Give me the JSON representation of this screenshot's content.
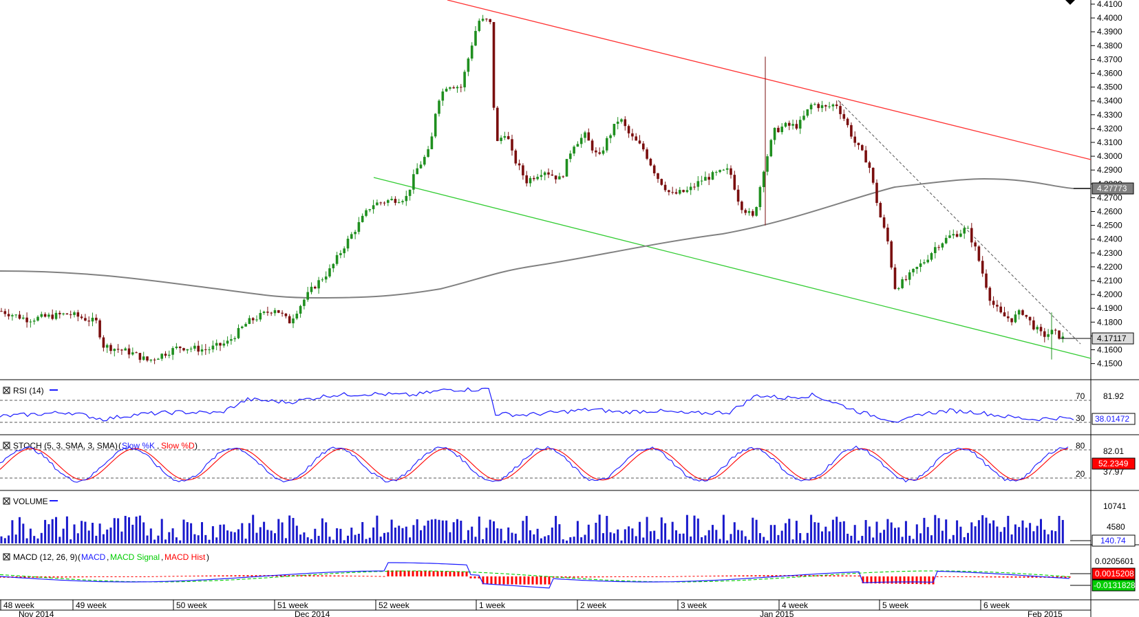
{
  "chart_data": {
    "type": "candlestick",
    "price_axis": {
      "ticks": [
        "4.4100",
        "4.4000",
        "4.3900",
        "4.3800",
        "4.3700",
        "4.3600",
        "4.3500",
        "4.3400",
        "4.3300",
        "4.3200",
        "4.3100",
        "4.3000",
        "4.2900",
        "4.2800",
        "4.2700",
        "4.2600",
        "4.2500",
        "4.2400",
        "4.2300",
        "4.2200",
        "4.2100",
        "4.2000",
        "4.1900",
        "4.1800",
        "4.1700",
        "4.1600",
        "4.1500"
      ],
      "ylim": [
        4.145,
        4.411
      ],
      "current_price": "4.17117",
      "ma_value": "4.27773"
    },
    "indicators": {
      "rsi": {
        "title": "RSI (14)",
        "levels": [
          "70",
          "30"
        ],
        "max_label": "81.92",
        "value": "38.01472"
      },
      "stoch": {
        "title": "STOCH (5, 3, SMA, 3, SMA)",
        "k_label": "Slow %K",
        "d_label": "Slow %D",
        "levels": [
          "80",
          "20"
        ],
        "max_label": "82.01",
        "min_label": "37.97",
        "value": "52.2349"
      },
      "volume": {
        "title": "VOLUME",
        "ticks": [
          "10741",
          "4580"
        ],
        "value": "140.74"
      },
      "macd": {
        "title": "MACD (12, 26, 9)",
        "macd_label": "MACD",
        "signal_label": "MACD Signal",
        "hist_label": "MACD Hist",
        "top_label": "0.0205601",
        "value1": "0.0015208",
        "value2": "-0.0131828"
      }
    },
    "x_axis": {
      "weeks": [
        "48 week",
        "49 week",
        "50 week",
        "51 week",
        "52 week",
        "1 week",
        "2 week",
        "3 week",
        "4 week",
        "5 week",
        "6 week"
      ],
      "months": [
        "Nov 2014",
        "Dec 2014",
        "Jan 2015",
        "Feb 2015"
      ]
    },
    "colors": {
      "up": "#1f8f1f",
      "down": "#7a0e0e",
      "resistance": "#ff3333",
      "support": "#33cc33",
      "ma": "#808080",
      "rsi": "#1a1aff",
      "volume": "#1a1acc",
      "macd_hist": "#ff0000"
    }
  }
}
